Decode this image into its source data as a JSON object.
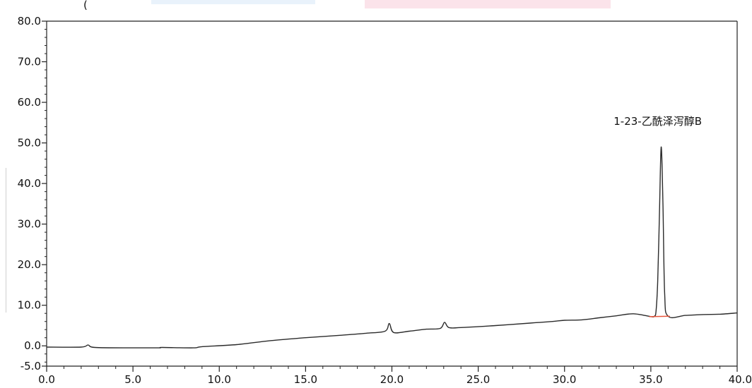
{
  "header_fragment": "(",
  "chart_data": {
    "type": "line",
    "title": "",
    "xlabel": "",
    "ylabel": "",
    "xlim": [
      0,
      40
    ],
    "ylim": [
      -5,
      80
    ],
    "x_ticks": [
      "0.0",
      "5.0",
      "10.0",
      "15.0",
      "20.0",
      "25.0",
      "30.0",
      "35.0",
      "40.0"
    ],
    "y_ticks": [
      "-5.0",
      "0.0",
      "10.0",
      "20.0",
      "30.0",
      "40.0",
      "50.0",
      "60.0",
      "70.0",
      "80.0"
    ],
    "grid": false,
    "series": [
      {
        "x": [
          0.0,
          2.0,
          2.4,
          2.8,
          5.0,
          6.5,
          6.7,
          8.5,
          9.0,
          11.0,
          13.0,
          15.0,
          17.0,
          18.5,
          19.6,
          19.85,
          20.1,
          21.0,
          22.0,
          22.8,
          23.05,
          23.3,
          24.0,
          26.0,
          28.0,
          29.3,
          30.0,
          31.0,
          32.0,
          33.0,
          34.0,
          35.0,
          35.2,
          35.3,
          35.4,
          35.5,
          35.6,
          35.7,
          35.8,
          36.0,
          37.0,
          38.0,
          39.0,
          40.0
        ],
        "y": [
          -0.3,
          -0.3,
          0.2,
          -0.4,
          -0.5,
          -0.5,
          -0.4,
          -0.5,
          -0.2,
          0.3,
          1.3,
          2.0,
          2.6,
          3.1,
          3.6,
          5.5,
          3.3,
          3.6,
          4.1,
          4.3,
          5.8,
          4.5,
          4.5,
          5.0,
          5.6,
          6.0,
          6.3,
          6.4,
          6.9,
          7.4,
          7.9,
          7.2,
          7.3,
          8.5,
          16.0,
          33.0,
          49.0,
          35.0,
          13.0,
          7.3,
          7.5,
          7.7,
          7.8,
          8.1
        ]
      }
    ],
    "baseline": {
      "x": [
        34.9,
        36.1
      ],
      "y": [
        7.2,
        7.3
      ],
      "color": "#e8553b"
    },
    "annotations": [
      {
        "text": "1-23-乙酰泽泻醇B",
        "x": 35.4,
        "y": 51.0
      }
    ],
    "colors": {
      "line": "#2b2b2b",
      "axis": "#222222"
    }
  }
}
